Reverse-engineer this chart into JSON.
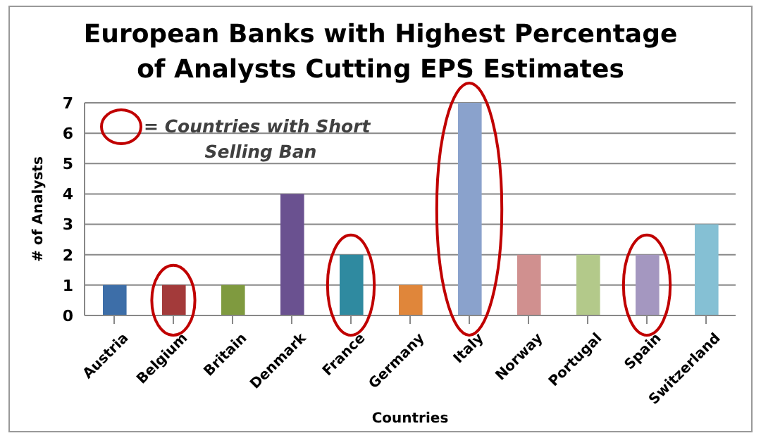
{
  "chart_data": {
    "type": "bar",
    "title": "European Banks with Highest Percentage of Analysts Cutting EPS Estimates",
    "xlabel": "Countries",
    "ylabel": "# of Analysts",
    "categories": [
      "Austria",
      "Belgium",
      "Britain",
      "Denmark",
      "France",
      "Germany",
      "Italy",
      "Norway",
      "Portugal",
      "Spain",
      "Switzerland"
    ],
    "values": [
      1,
      1,
      1,
      4,
      2,
      1,
      7,
      2,
      2,
      2,
      3
    ],
    "colors": [
      "#3d6ea8",
      "#a33a3a",
      "#7f9a3f",
      "#6a5190",
      "#2f8aa0",
      "#e0863a",
      "#8aa2cc",
      "#d0908f",
      "#b3c98a",
      "#a497c0",
      "#85c0d4"
    ],
    "ylim": [
      0,
      7
    ],
    "yticks": [
      0,
      1,
      2,
      3,
      4,
      5,
      6,
      7
    ],
    "grid": "y",
    "annotations": [
      "= Countries with Short Selling Ban"
    ]
  }
}
